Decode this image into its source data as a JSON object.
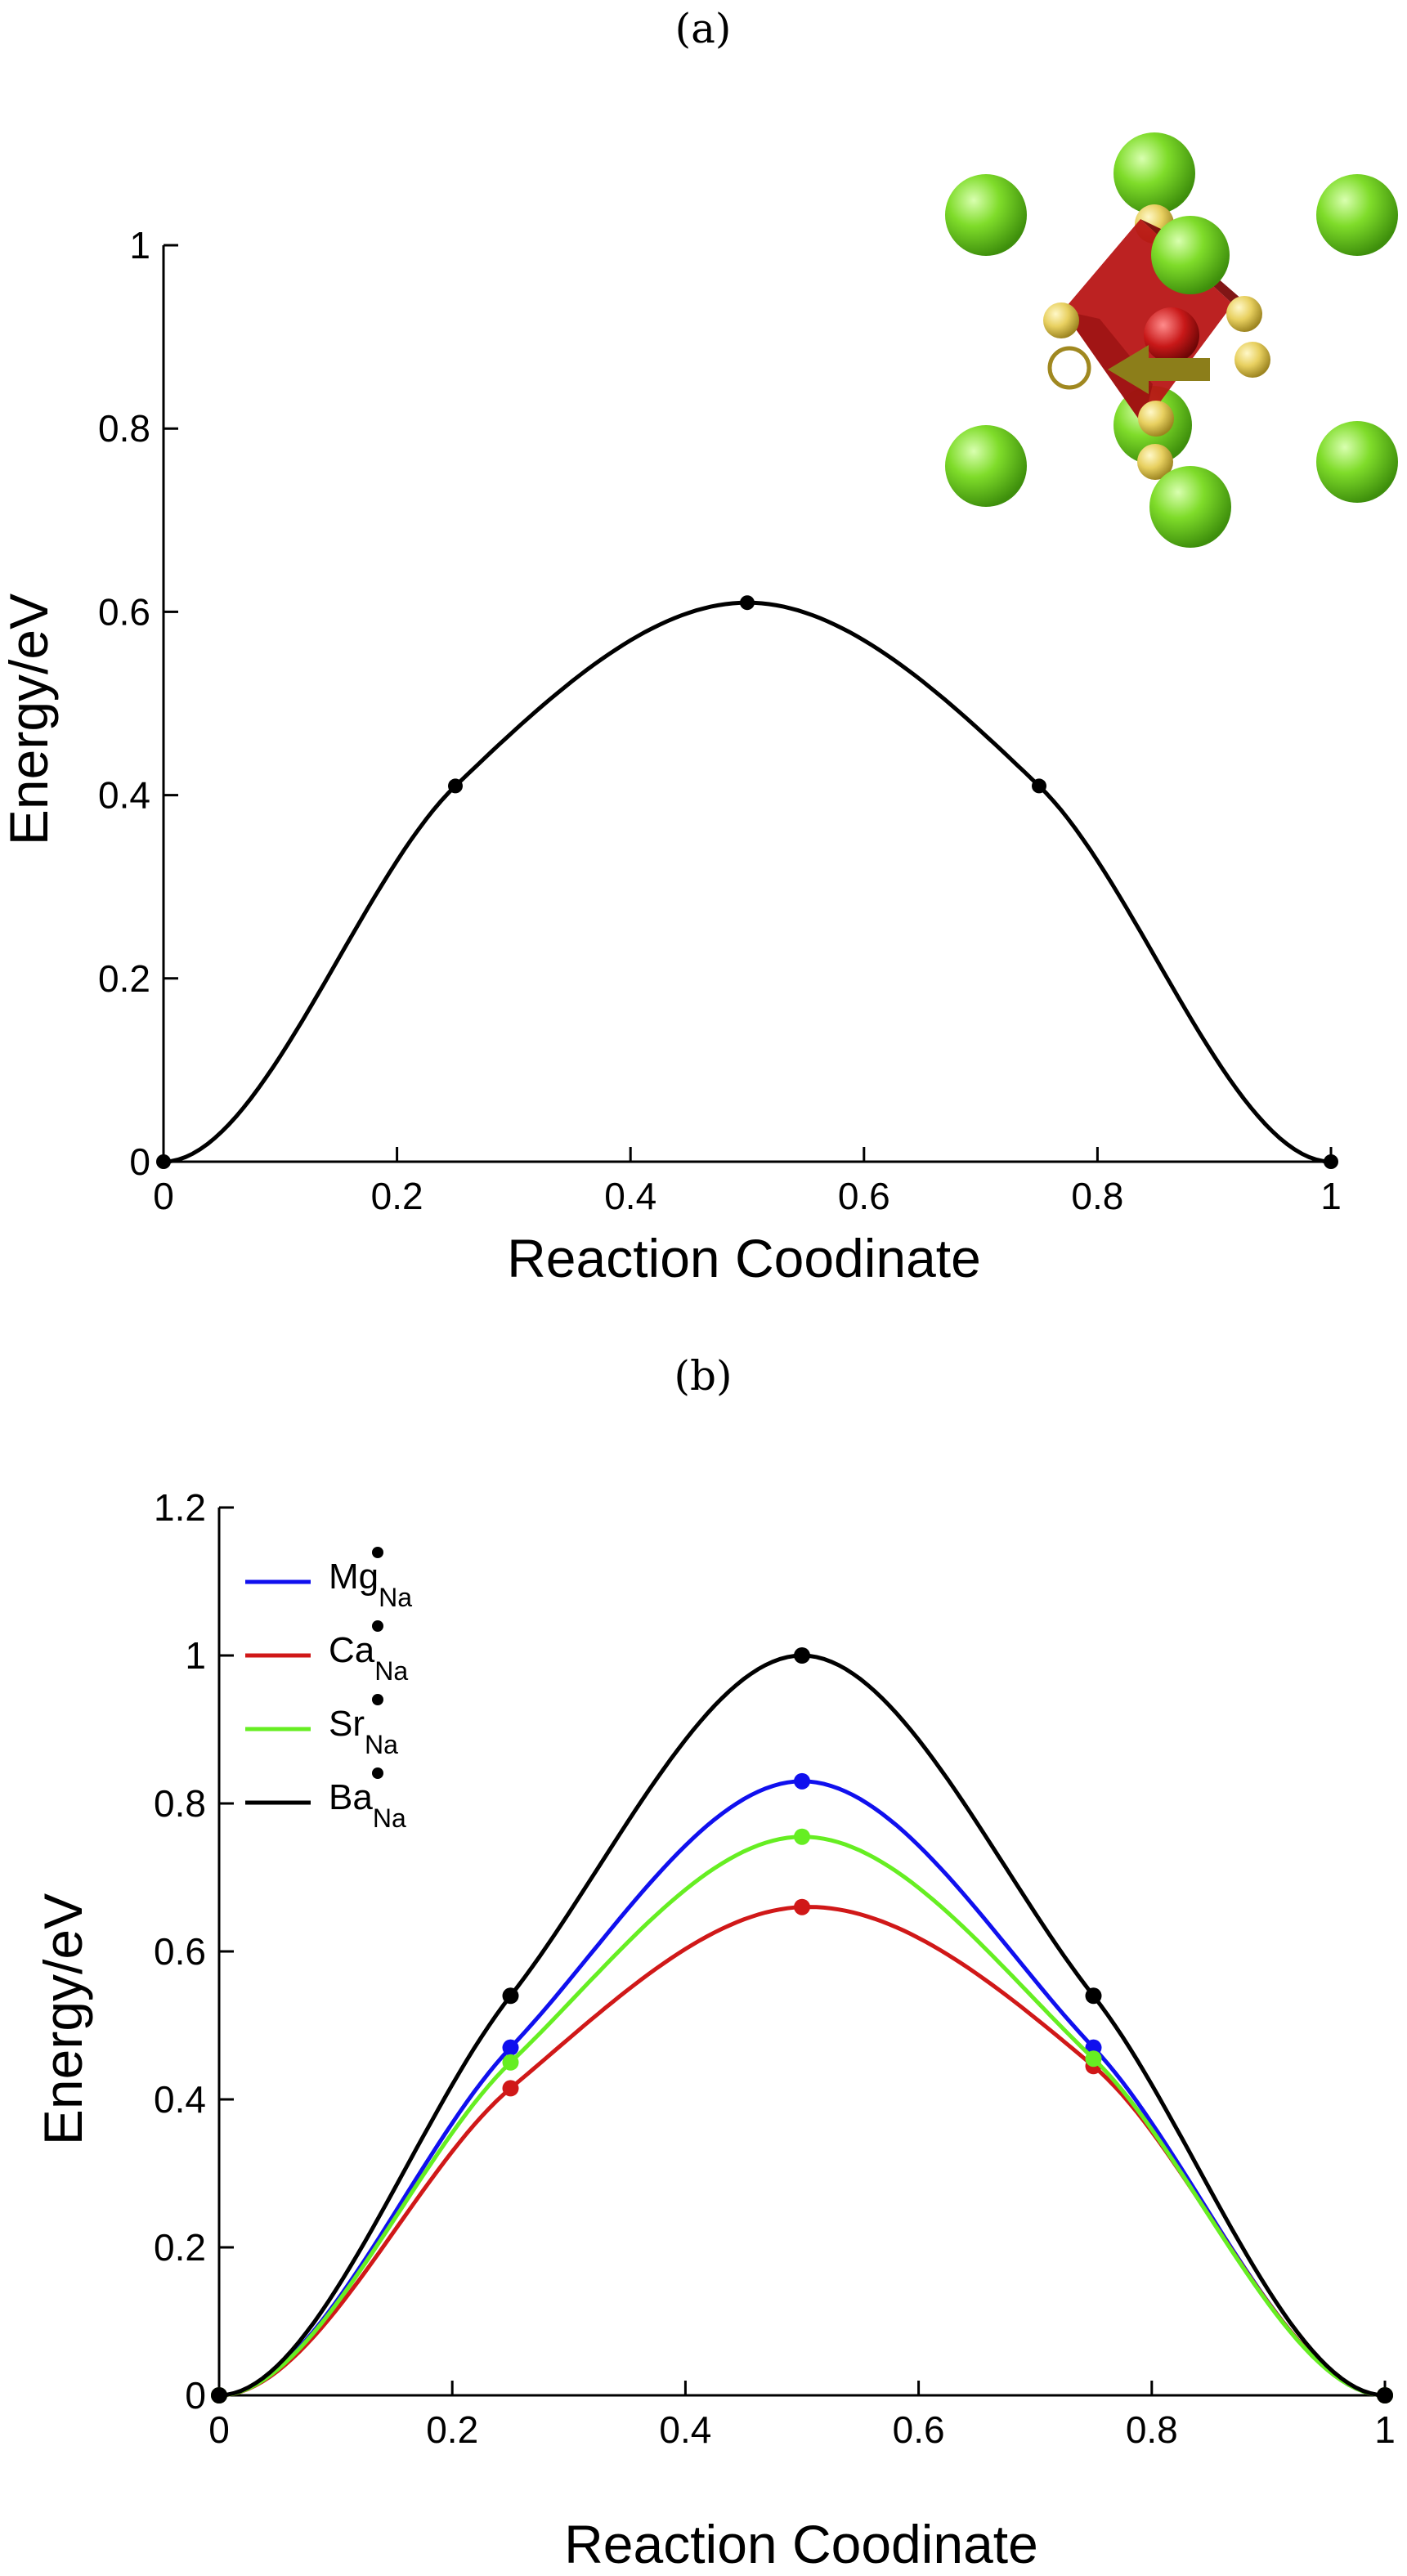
{
  "chart_data": [
    {
      "panel_label": "(a)",
      "type": "line",
      "xlabel": "Reaction Coodinate",
      "ylabel": "Energy/eV",
      "xlim": [
        0,
        1
      ],
      "ylim": [
        0,
        1
      ],
      "xticks": [
        "0",
        "0.2",
        "0.4",
        "0.6",
        "0.8",
        "1"
      ],
      "yticks": [
        "0",
        "0.2",
        "0.4",
        "0.6",
        "0.8",
        "1"
      ],
      "grid": false,
      "inset": "crystal-structure-migration-diagram",
      "series": [
        {
          "color": "#000000",
          "points": {
            "x": [
              0,
              0.25,
              0.5,
              0.75,
              1
            ],
            "y": [
              0,
              0.41,
              0.61,
              0.41,
              0
            ]
          }
        }
      ]
    },
    {
      "panel_label": "(b)",
      "type": "line",
      "xlabel": "Reaction Coodinate",
      "ylabel": "Energy/eV",
      "xlim": [
        0,
        1
      ],
      "ylim": [
        0,
        1.2
      ],
      "xticks": [
        "0",
        "0.2",
        "0.4",
        "0.6",
        "0.8",
        "1"
      ],
      "yticks": [
        "0",
        "0.2",
        "0.4",
        "0.6",
        "0.8",
        "1",
        "1.2"
      ],
      "grid": false,
      "legend_position": "top-left",
      "series": [
        {
          "name": "Mg",
          "sub": "Na",
          "color": "#1010ee",
          "points": {
            "x": [
              0,
              0.25,
              0.5,
              0.75,
              1
            ],
            "y": [
              0,
              0.47,
              0.83,
              0.47,
              0
            ]
          }
        },
        {
          "name": "Ca",
          "sub": "Na",
          "color": "#d01818",
          "points": {
            "x": [
              0,
              0.25,
              0.5,
              0.75,
              1
            ],
            "y": [
              0,
              0.415,
              0.66,
              0.445,
              0
            ]
          }
        },
        {
          "name": "Sr",
          "sub": "Na",
          "color": "#66ee22",
          "points": {
            "x": [
              0,
              0.25,
              0.5,
              0.75,
              1
            ],
            "y": [
              0,
              0.45,
              0.755,
              0.455,
              0
            ]
          }
        },
        {
          "name": "Ba",
          "sub": "Na",
          "color": "#000000",
          "points": {
            "x": [
              0,
              0.25,
              0.5,
              0.75,
              1
            ],
            "y": [
              0,
              0.54,
              1.0,
              0.54,
              0
            ]
          }
        }
      ]
    }
  ]
}
